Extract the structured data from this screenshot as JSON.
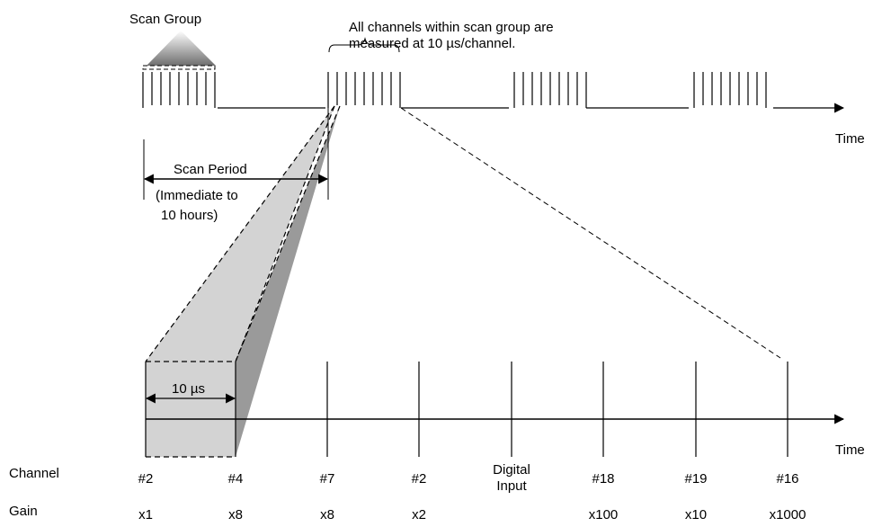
{
  "labels": {
    "scan_group": "Scan Group",
    "note_line1": "All channels within scan group are",
    "note_line2": "measured at 10 µs/channel.",
    "time_top": "Time",
    "scan_period": "Scan Period",
    "period_detail_line1": "(Immediate to",
    "period_detail_line2": "10 hours)",
    "interval": "10 µs",
    "time_bottom": "Time",
    "channel_heading": "Channel",
    "gain_heading": "Gain"
  },
  "channels": [
    "#2",
    "#4",
    "#7",
    "#2",
    "Digital Input",
    "#18",
    "#19",
    "#16"
  ],
  "gains": [
    "x1",
    "x8",
    "x8",
    "x2",
    "",
    "x100",
    "x10",
    "x1000"
  ],
  "colors": {
    "line": "#000000",
    "light_fill": "#d3d3d3",
    "dark_fill": "#9a9a9a"
  }
}
